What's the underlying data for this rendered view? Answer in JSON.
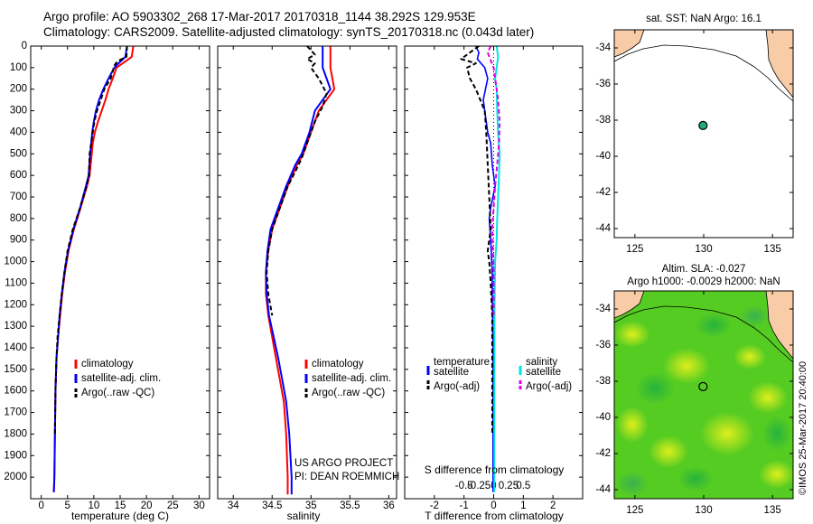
{
  "header": {
    "line1": "Argo profile: AO 5903302_268 17-Mar-2017 20170318_1144 38.292S 129.953E",
    "line2": "Climatology: CARS2009. Satellite-adjusted climatology: synTS_20170318.nc (0.043d later)"
  },
  "colors": {
    "climatology": "#ff0000",
    "satellite": "#0000ff",
    "argo": "#000000",
    "sal_satellite": "#00e5e5",
    "sal_argo": "#e000e0",
    "land": "#f9cca8",
    "float_marker": "#22aa77",
    "sla_field": "#55cc22"
  },
  "stamp": "©IMOS 25-Mar-2017 20:40:00",
  "project": {
    "line1": "US ARGO PROJECT",
    "line2": "PI: DEAN ROEMMICH"
  },
  "chart_data": [
    {
      "type": "line",
      "xlabel": "temperature (deg C)",
      "ylabel": "",
      "xlim": [
        -2,
        32
      ],
      "ylim": [
        2100,
        0
      ],
      "xticks": [
        0,
        5,
        10,
        15,
        20,
        25,
        30
      ],
      "yticks": [
        0,
        100,
        200,
        300,
        400,
        500,
        600,
        700,
        800,
        900,
        1000,
        1100,
        1200,
        1300,
        1400,
        1500,
        1600,
        1700,
        1800,
        1900,
        2000
      ],
      "legend": [
        "climatology",
        "satellite-adj. clim.",
        "Argo(..raw -QC)"
      ],
      "series": [
        {
          "name": "climatology",
          "x": [
            17.5,
            17.2,
            15.5,
            14.3,
            13.6,
            12.8,
            12.2,
            11.5,
            10.8,
            10.2,
            9.8,
            9.6,
            9.2,
            8.7,
            7.5,
            6.2,
            5.2,
            4.5,
            4.0,
            3.6,
            3.2,
            2.9,
            2.7,
            2.6,
            2.5,
            2.4
          ],
          "y": [
            0,
            50,
            80,
            100,
            150,
            200,
            250,
            300,
            350,
            400,
            450,
            500,
            600,
            650,
            750,
            850,
            950,
            1050,
            1150,
            1250,
            1350,
            1450,
            1600,
            1800,
            2000,
            2070
          ]
        },
        {
          "name": "satellite-adj. clim.",
          "x": [
            16.3,
            16.0,
            14.7,
            13.9,
            12.8,
            11.8,
            11.0,
            10.4,
            10.0,
            9.7,
            9.5,
            9.3,
            9.0,
            8.5,
            7.4,
            6.1,
            5.1,
            4.4,
            3.9,
            3.5,
            3.2,
            2.9,
            2.7,
            2.6,
            2.5,
            2.4
          ],
          "y": [
            0,
            50,
            80,
            100,
            150,
            200,
            250,
            300,
            350,
            400,
            450,
            500,
            600,
            650,
            750,
            850,
            950,
            1050,
            1150,
            1250,
            1350,
            1450,
            1600,
            1800,
            2000,
            2070
          ]
        },
        {
          "name": "Argo(..raw -QC)",
          "x": [
            16.3,
            16.2,
            14.5,
            13.9,
            13.2,
            12.0,
            11.3,
            10.6,
            10.1,
            9.8,
            9.5,
            9.2,
            9.1,
            8.6,
            7.4,
            6.0,
            5.0,
            4.4,
            3.9,
            3.5,
            3.1,
            2.9,
            2.7,
            2.6
          ],
          "y": [
            0,
            50,
            70,
            90,
            150,
            200,
            250,
            300,
            350,
            400,
            450,
            500,
            600,
            650,
            750,
            850,
            950,
            1050,
            1150,
            1250,
            1350,
            1450,
            1600,
            1800
          ]
        }
      ]
    },
    {
      "type": "line",
      "xlabel": "salinity",
      "ylabel": "",
      "xlim": [
        33.8,
        36.1
      ],
      "ylim": [
        2100,
        0
      ],
      "xticks": [
        34,
        34.5,
        35,
        35.5,
        36
      ],
      "xticklabels": [
        "34",
        "34.5",
        "35",
        "35.5",
        "36"
      ],
      "legend": [
        "climatology",
        "satellite-adj. clim.",
        "Argo(..raw -QC)"
      ],
      "series": [
        {
          "name": "climatology",
          "x": [
            35.25,
            35.25,
            35.3,
            35.2,
            35.1,
            35.0,
            34.9,
            34.82,
            34.7,
            34.6,
            34.5,
            34.45,
            34.42,
            34.42,
            34.45,
            34.5,
            34.55,
            34.6,
            34.65,
            34.68,
            34.7,
            34.7
          ],
          "y": [
            0,
            100,
            200,
            250,
            300,
            400,
            500,
            550,
            650,
            750,
            850,
            950,
            1050,
            1150,
            1250,
            1350,
            1450,
            1550,
            1650,
            1800,
            2000,
            2080
          ]
        },
        {
          "name": "satellite-adj. clim.",
          "x": [
            35.15,
            35.15,
            35.25,
            35.15,
            35.05,
            34.98,
            34.88,
            34.8,
            34.68,
            34.58,
            34.48,
            34.44,
            34.42,
            34.43,
            34.46,
            34.52,
            34.58,
            34.63,
            34.68,
            34.72,
            34.75,
            34.75
          ],
          "y": [
            0,
            100,
            200,
            250,
            300,
            400,
            500,
            550,
            650,
            750,
            850,
            950,
            1050,
            1150,
            1250,
            1350,
            1450,
            1550,
            1650,
            1800,
            2000,
            2080
          ]
        },
        {
          "name": "Argo(..raw -QC)",
          "x": [
            34.95,
            35.05,
            34.95,
            35.05,
            35.0,
            35.1,
            35.2,
            35.15,
            35.05,
            34.95,
            34.88,
            34.8,
            34.7,
            34.6,
            34.5,
            34.45,
            34.43,
            34.45,
            34.5
          ],
          "y": [
            0,
            40,
            60,
            80,
            100,
            150,
            220,
            280,
            350,
            450,
            520,
            580,
            650,
            750,
            850,
            950,
            1050,
            1150,
            1250
          ]
        }
      ]
    },
    {
      "type": "line",
      "xlabel": "T difference from climatology",
      "ylabel": "",
      "xlim": [
        -3,
        3
      ],
      "ylim": [
        2100,
        0
      ],
      "xticks": [
        -2,
        -1,
        0,
        1,
        2
      ],
      "xticklabels": [
        "-2",
        "-1",
        "0",
        "1",
        "2"
      ],
      "s_xlabel": "S difference from climatology",
      "s_xticks": [
        -0.5,
        -0.25,
        0,
        0.25,
        0.5
      ],
      "s_xticklabels": [
        "-0.5",
        "-0.25",
        "0",
        "0.25",
        "0.5"
      ],
      "legend_left_title": "temperature",
      "legend_right_title": "salinity",
      "legend": [
        "satellite",
        "Argo(-adj)",
        "satellite",
        "Argo(-adj)"
      ],
      "series": [
        {
          "name": "satellite",
          "x": [
            -0.6,
            -0.5,
            -0.55,
            -0.3,
            -0.2,
            -0.35,
            -0.3,
            -0.2,
            -0.1,
            -0.05,
            0.05,
            -0.1,
            -0.15,
            -0.1,
            -0.05,
            -0.05,
            -0.02,
            -0.02,
            -0.02
          ],
          "y": [
            0,
            30,
            60,
            100,
            150,
            250,
            300,
            400,
            450,
            550,
            650,
            750,
            800,
            900,
            1050,
            1150,
            1400,
            1700,
            2070
          ]
        },
        {
          "name": "Argo(-adj)",
          "x": [
            -0.5,
            -0.8,
            -1.1,
            -0.6,
            -0.9,
            -0.8,
            -0.6,
            -0.45,
            -0.3,
            -0.25,
            -0.2,
            -0.15,
            -0.1,
            -0.15,
            -0.2,
            -0.15,
            -0.1,
            -0.05,
            -0.05
          ],
          "y": [
            0,
            30,
            60,
            80,
            100,
            150,
            200,
            250,
            300,
            400,
            550,
            700,
            850,
            900,
            950,
            1000,
            1100,
            1250,
            1800
          ]
        },
        {
          "name": "salinity satellite",
          "x": [
            0.1,
            0.15,
            0.1,
            0.05,
            0.1,
            0.12,
            0.15,
            0.2,
            0.18,
            0.15,
            0.12,
            0.1,
            0.05,
            0.03,
            0.02,
            0.02
          ],
          "y": [
            0,
            50,
            100,
            150,
            200,
            300,
            400,
            500,
            600,
            700,
            800,
            900,
            1000,
            1200,
            1600,
            2070
          ]
        },
        {
          "name": "salinity Argo(-adj)",
          "x": [
            -0.1,
            -0.2,
            -0.12,
            0.0,
            0.05,
            0.1,
            0.15,
            0.2,
            0.18,
            0.12,
            0.05,
            0.0,
            -0.05,
            -0.02,
            0.0,
            0.0
          ],
          "y": [
            0,
            30,
            60,
            100,
            150,
            200,
            250,
            350,
            450,
            550,
            650,
            750,
            850,
            950,
            1050,
            1250
          ]
        }
      ]
    },
    {
      "type": "scatter",
      "title": "sat. SST: NaN Argo: 16.1",
      "xlim": [
        123.5,
        136.5
      ],
      "ylim": [
        -44.5,
        -33
      ],
      "xticks": [
        125,
        130,
        135
      ],
      "yticks": [
        -34,
        -36,
        -38,
        -40,
        -42,
        -44
      ],
      "points": [
        {
          "x": 129.953,
          "y": -38.292
        }
      ]
    },
    {
      "type": "heatmap",
      "title_line1": "Altim. SLA: -0.027",
      "title_line2": "Argo h1000: -0.0029 h2000: NaN",
      "xlim": [
        123.5,
        136.5
      ],
      "ylim": [
        -44.5,
        -33
      ],
      "xticks": [
        125,
        130,
        135
      ],
      "yticks": [
        -34,
        -36,
        -38,
        -40,
        -42,
        -44
      ],
      "points": [
        {
          "x": 129.953,
          "y": -38.292
        }
      ]
    }
  ]
}
